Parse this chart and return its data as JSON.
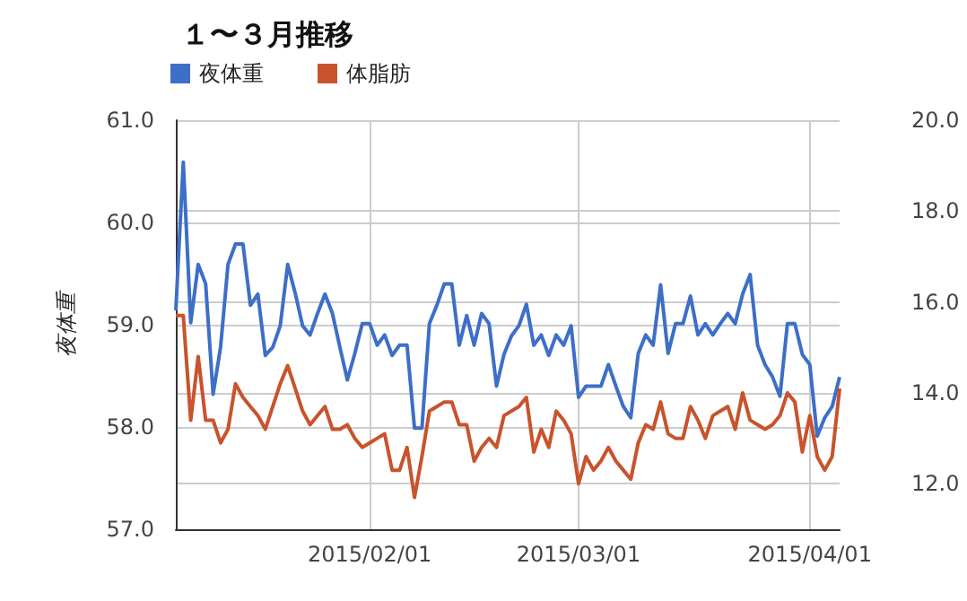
{
  "chart_data": {
    "type": "line",
    "title": "１〜３月推移",
    "ylabel": "夜体重",
    "x": [
      "2015-01-06",
      "2015-01-07",
      "2015-01-08",
      "2015-01-09",
      "2015-01-10",
      "2015-01-11",
      "2015-01-12",
      "2015-01-13",
      "2015-01-14",
      "2015-01-15",
      "2015-01-16",
      "2015-01-17",
      "2015-01-18",
      "2015-01-19",
      "2015-01-20",
      "2015-01-21",
      "2015-01-22",
      "2015-01-23",
      "2015-01-24",
      "2015-01-25",
      "2015-01-26",
      "2015-01-27",
      "2015-01-28",
      "2015-01-29",
      "2015-01-30",
      "2015-01-31",
      "2015-02-01",
      "2015-02-02",
      "2015-02-03",
      "2015-02-04",
      "2015-02-05",
      "2015-02-06",
      "2015-02-07",
      "2015-02-08",
      "2015-02-09",
      "2015-02-10",
      "2015-02-11",
      "2015-02-12",
      "2015-02-13",
      "2015-02-14",
      "2015-02-15",
      "2015-02-16",
      "2015-02-17",
      "2015-02-18",
      "2015-02-19",
      "2015-02-20",
      "2015-02-21",
      "2015-02-22",
      "2015-02-23",
      "2015-02-24",
      "2015-02-25",
      "2015-02-26",
      "2015-02-27",
      "2015-02-28",
      "2015-03-01",
      "2015-03-02",
      "2015-03-03",
      "2015-03-04",
      "2015-03-05",
      "2015-03-06",
      "2015-03-07",
      "2015-03-08",
      "2015-03-09",
      "2015-03-10",
      "2015-03-11",
      "2015-03-12",
      "2015-03-13",
      "2015-03-14",
      "2015-03-15",
      "2015-03-16",
      "2015-03-17",
      "2015-03-18",
      "2015-03-19",
      "2015-03-20",
      "2015-03-21",
      "2015-03-22",
      "2015-03-23",
      "2015-03-24",
      "2015-03-25",
      "2015-03-26",
      "2015-03-27",
      "2015-03-28",
      "2015-03-29",
      "2015-03-30",
      "2015-03-31",
      "2015-04-01",
      "2015-04-02",
      "2015-04-03",
      "2015-04-04",
      "2015-04-05"
    ],
    "series": [
      {
        "name": "夜体重",
        "color": "#3d6fc8",
        "values": [
          59.14,
          60.59,
          59.02,
          59.59,
          59.4,
          58.32,
          58.78,
          59.59,
          59.79,
          59.79,
          59.19,
          59.3,
          58.7,
          58.78,
          58.99,
          59.59,
          59.31,
          58.99,
          58.9,
          59.11,
          59.3,
          59.11,
          58.78,
          58.46,
          58.72,
          59.01,
          59.01,
          58.8,
          58.9,
          58.7,
          58.8,
          58.8,
          57.99,
          57.99,
          59.01,
          59.19,
          59.4,
          59.4,
          58.8,
          59.09,
          58.8,
          59.11,
          59.01,
          58.4,
          58.71,
          58.89,
          58.99,
          59.2,
          58.8,
          58.9,
          58.7,
          58.9,
          58.8,
          58.99,
          58.29,
          58.4,
          58.4,
          58.4,
          58.61,
          58.4,
          58.2,
          58.09,
          58.72,
          58.9,
          58.8,
          59.39,
          58.72,
          59.01,
          59.01,
          59.28,
          58.9,
          59.01,
          58.9,
          59.01,
          59.11,
          59.01,
          59.3,
          59.49,
          58.8,
          58.61,
          58.49,
          58.3,
          59.01,
          59.01,
          58.71,
          58.61,
          57.91,
          58.09,
          58.2,
          58.49
        ]
      },
      {
        "name": "体脂肪",
        "color": "#c8532c",
        "axis": "y2",
        "values": [
          15.7,
          15.7,
          13.4,
          14.8,
          13.4,
          13.4,
          12.9,
          13.2,
          14.2,
          13.9,
          13.7,
          13.5,
          13.2,
          13.7,
          14.2,
          14.6,
          14.1,
          13.6,
          13.3,
          13.5,
          13.7,
          13.2,
          13.2,
          13.3,
          13.0,
          12.8,
          12.9,
          13.0,
          13.1,
          12.3,
          12.3,
          12.8,
          11.7,
          12.6,
          13.6,
          13.7,
          13.8,
          13.8,
          13.3,
          13.3,
          12.5,
          12.8,
          13.0,
          12.8,
          13.5,
          13.6,
          13.7,
          13.9,
          12.7,
          13.2,
          12.8,
          13.6,
          13.4,
          13.1,
          12.0,
          12.6,
          12.3,
          12.5,
          12.8,
          12.5,
          12.3,
          12.1,
          12.9,
          13.3,
          13.2,
          13.8,
          13.1,
          13.0,
          13.0,
          13.7,
          13.4,
          13.0,
          13.5,
          13.6,
          13.7,
          13.2,
          14.0,
          13.4,
          13.3,
          13.2,
          13.3,
          13.5,
          14.0,
          13.8,
          12.7,
          13.5,
          12.6,
          12.3,
          12.6,
          14.1
        ]
      }
    ],
    "xlim": [
      "2015-01-06",
      "2015-04-05"
    ],
    "xticks": [
      {
        "value": "2015-02-01",
        "label": "2015/02/01"
      },
      {
        "value": "2015-03-01",
        "label": "2015/03/01"
      },
      {
        "value": "2015-04-01",
        "label": "2015/04/01"
      }
    ],
    "ylim": [
      57,
      61
    ],
    "yticks": [
      {
        "value": 57,
        "label": "57.0"
      },
      {
        "value": 58,
        "label": "58.0"
      },
      {
        "value": 59,
        "label": "59.0"
      },
      {
        "value": 60,
        "label": "60.0"
      },
      {
        "value": 61,
        "label": "61.0"
      }
    ],
    "y2lim": [
      11,
      20
    ],
    "y2ticks": [
      {
        "value": 12,
        "label": "12.0"
      },
      {
        "value": 14,
        "label": "14.0"
      },
      {
        "value": 16,
        "label": "16.0"
      },
      {
        "value": 18,
        "label": "18.0"
      },
      {
        "value": 20,
        "label": "20.0"
      }
    ],
    "grid": true,
    "legend": "top left",
    "marker": "none",
    "line_style": "solid"
  }
}
